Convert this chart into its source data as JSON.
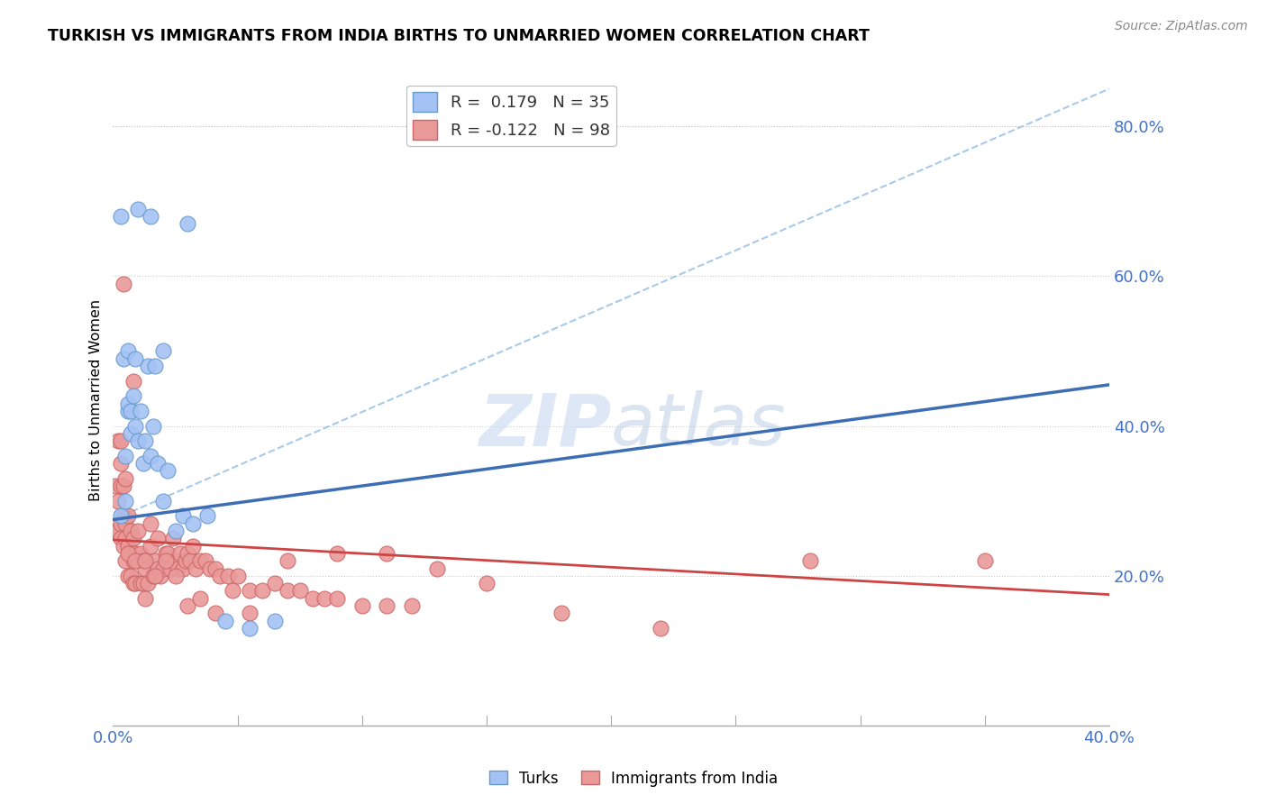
{
  "title": "TURKISH VS IMMIGRANTS FROM INDIA BIRTHS TO UNMARRIED WOMEN CORRELATION CHART",
  "source": "Source: ZipAtlas.com",
  "ylabel": "Births to Unmarried Women",
  "xmin": 0.0,
  "xmax": 0.4,
  "ymin": 0.0,
  "ymax": 0.87,
  "legend_blue_r": "0.179",
  "legend_blue_n": "35",
  "legend_pink_r": "-0.122",
  "legend_pink_n": "98",
  "blue_color": "#a4c2f4",
  "pink_color": "#ea9999",
  "trendline_blue_color": "#3d6eb5",
  "trendline_pink_color": "#cc4444",
  "trendline_dashed_color": "#9fc5e8",
  "turks_x": [
    0.003,
    0.01,
    0.015,
    0.03,
    0.003,
    0.005,
    0.005,
    0.006,
    0.006,
    0.007,
    0.007,
    0.008,
    0.009,
    0.01,
    0.011,
    0.012,
    0.013,
    0.014,
    0.015,
    0.016,
    0.017,
    0.018,
    0.02,
    0.022,
    0.025,
    0.028,
    0.032,
    0.038,
    0.045,
    0.055,
    0.065,
    0.004,
    0.006,
    0.009,
    0.02
  ],
  "turks_y": [
    0.68,
    0.69,
    0.68,
    0.67,
    0.28,
    0.3,
    0.36,
    0.42,
    0.43,
    0.39,
    0.42,
    0.44,
    0.4,
    0.38,
    0.42,
    0.35,
    0.38,
    0.48,
    0.36,
    0.4,
    0.48,
    0.35,
    0.3,
    0.34,
    0.26,
    0.28,
    0.27,
    0.28,
    0.14,
    0.13,
    0.14,
    0.49,
    0.5,
    0.49,
    0.5
  ],
  "india_x": [
    0.001,
    0.001,
    0.002,
    0.002,
    0.002,
    0.003,
    0.003,
    0.003,
    0.003,
    0.004,
    0.004,
    0.004,
    0.005,
    0.005,
    0.005,
    0.005,
    0.006,
    0.006,
    0.006,
    0.007,
    0.007,
    0.007,
    0.008,
    0.008,
    0.008,
    0.009,
    0.009,
    0.01,
    0.01,
    0.011,
    0.011,
    0.012,
    0.012,
    0.013,
    0.013,
    0.014,
    0.015,
    0.015,
    0.016,
    0.017,
    0.018,
    0.018,
    0.019,
    0.02,
    0.021,
    0.022,
    0.023,
    0.024,
    0.025,
    0.026,
    0.027,
    0.028,
    0.029,
    0.03,
    0.031,
    0.032,
    0.033,
    0.035,
    0.037,
    0.039,
    0.041,
    0.043,
    0.046,
    0.05,
    0.055,
    0.06,
    0.065,
    0.07,
    0.075,
    0.08,
    0.085,
    0.09,
    0.1,
    0.11,
    0.12,
    0.003,
    0.006,
    0.009,
    0.013,
    0.017,
    0.021,
    0.025,
    0.03,
    0.035,
    0.041,
    0.048,
    0.055,
    0.07,
    0.09,
    0.11,
    0.13,
    0.15,
    0.18,
    0.22,
    0.28,
    0.35,
    0.004,
    0.008
  ],
  "india_y": [
    0.26,
    0.32,
    0.26,
    0.3,
    0.38,
    0.27,
    0.25,
    0.32,
    0.38,
    0.24,
    0.28,
    0.32,
    0.22,
    0.25,
    0.27,
    0.33,
    0.2,
    0.24,
    0.28,
    0.2,
    0.23,
    0.26,
    0.19,
    0.22,
    0.25,
    0.19,
    0.23,
    0.22,
    0.26,
    0.19,
    0.23,
    0.19,
    0.22,
    0.17,
    0.21,
    0.19,
    0.24,
    0.27,
    0.2,
    0.22,
    0.21,
    0.25,
    0.2,
    0.21,
    0.23,
    0.23,
    0.21,
    0.25,
    0.22,
    0.21,
    0.23,
    0.21,
    0.22,
    0.23,
    0.22,
    0.24,
    0.21,
    0.22,
    0.22,
    0.21,
    0.21,
    0.2,
    0.2,
    0.2,
    0.18,
    0.18,
    0.19,
    0.18,
    0.18,
    0.17,
    0.17,
    0.17,
    0.16,
    0.16,
    0.16,
    0.35,
    0.23,
    0.22,
    0.22,
    0.2,
    0.22,
    0.2,
    0.16,
    0.17,
    0.15,
    0.18,
    0.15,
    0.22,
    0.23,
    0.23,
    0.21,
    0.19,
    0.15,
    0.13,
    0.22,
    0.22,
    0.59,
    0.46
  ],
  "blue_trendline_x0": 0.0,
  "blue_trendline_y0": 0.275,
  "blue_trendline_x1": 0.4,
  "blue_trendline_y1": 0.455,
  "pink_trendline_x0": 0.0,
  "pink_trendline_y0": 0.248,
  "pink_trendline_x1": 0.4,
  "pink_trendline_y1": 0.175,
  "dashed_trendline_x0": 0.0,
  "dashed_trendline_y0": 0.275,
  "dashed_trendline_x1": 0.4,
  "dashed_trendline_y1": 0.85
}
